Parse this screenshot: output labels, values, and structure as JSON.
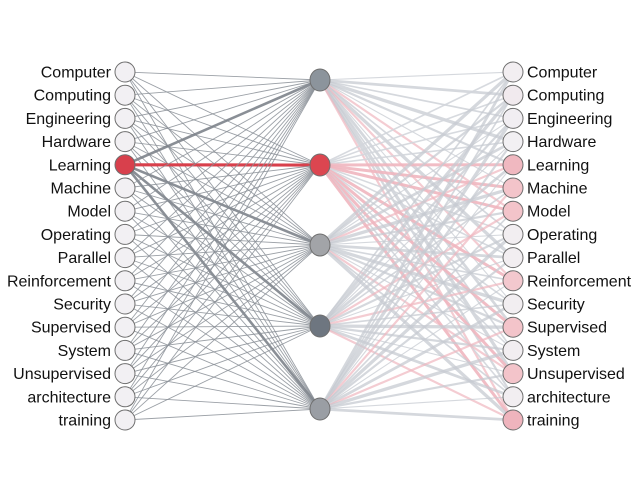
{
  "input_words": [
    "Computer",
    "Computing",
    "Engineering",
    "Hardware",
    "Learning",
    "Machine",
    "Model",
    "Operating",
    "Parallel",
    "Reinforcement",
    "Security",
    "Supervised",
    "System",
    "Unsupervised",
    "architecture",
    "training"
  ],
  "output_words": [
    "Computer",
    "Computing",
    "Engineering",
    "Hardware",
    "Learning",
    "Machine",
    "Model",
    "Operating",
    "Parallel",
    "Reinforcement",
    "Security",
    "Supervised",
    "System",
    "Unsupervised",
    "architecture",
    "training"
  ],
  "hidden_node_count": 5,
  "active_input": "Learning",
  "active_hidden_index": 1,
  "hidden_fill_colors": [
    "#8c949c",
    "#dc4650",
    "#a2a4a8",
    "#6e7680",
    "#9a9ea4"
  ],
  "output_fill_colors": [
    "#f2eef1",
    "#f1eaee",
    "#f1eef2",
    "#f2f0f3",
    "#f0b8c0",
    "#f3c4ca",
    "#f3c4ca",
    "#f2eef1",
    "#f2eef1",
    "#f3c8ce",
    "#f2eef1",
    "#f3c4ca",
    "#f2eef1",
    "#f3c4ca",
    "#f2eef1",
    "#efb4bd"
  ],
  "colors": {
    "active": "#d8404c",
    "input_edge": "#8a8f96",
    "input_node": "#f2f0f3",
    "output_edge_gray": "#c7cbd1",
    "output_edge_pink": "#efb6bf"
  }
}
